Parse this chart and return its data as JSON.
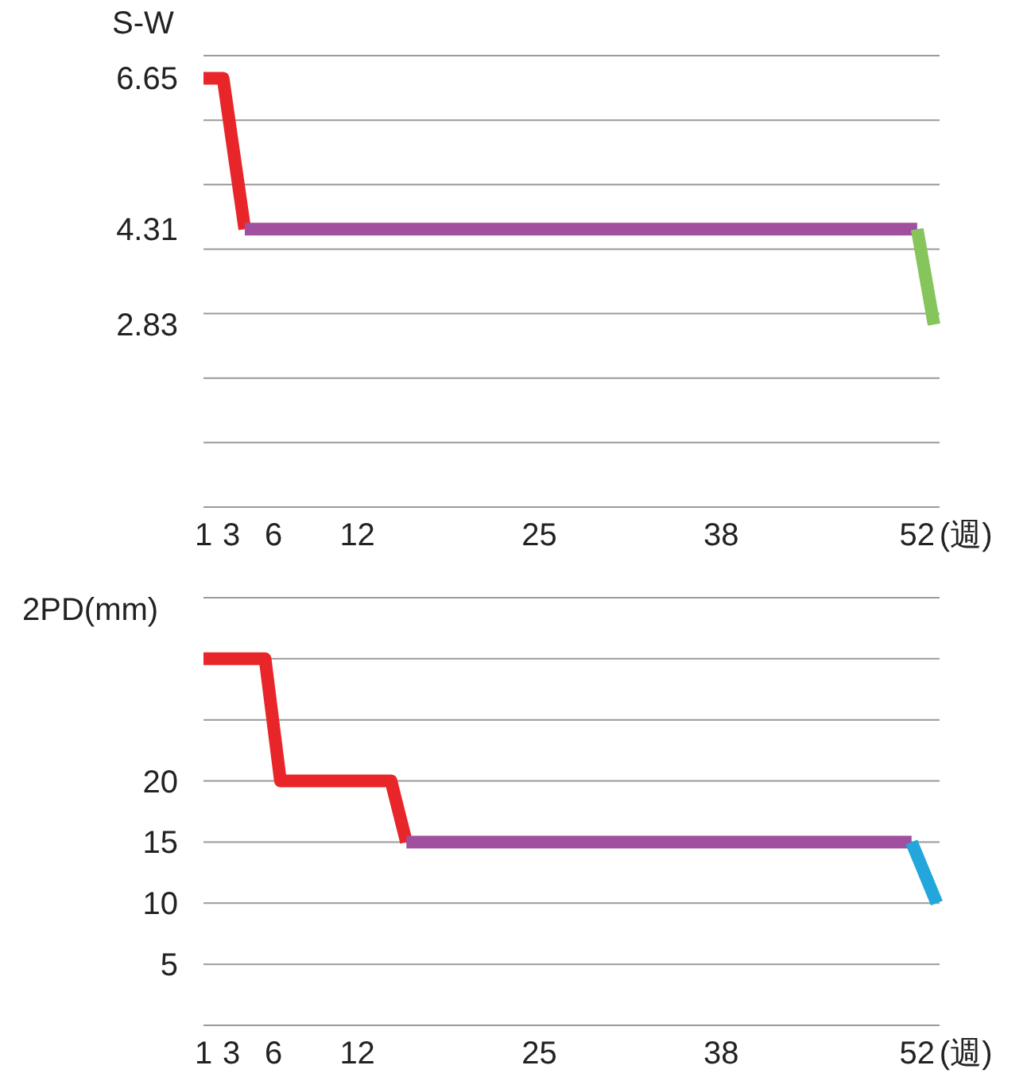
{
  "chart_data": [
    {
      "type": "line",
      "ylabel": "S-W",
      "xlabel": "(週)",
      "xlim": [
        1,
        53.6
      ],
      "xticks": [
        1,
        3,
        6,
        12,
        25,
        38,
        52
      ],
      "ylim": [
        0,
        7
      ],
      "yticks": [
        {
          "value": 0,
          "label": null
        },
        {
          "value": 1,
          "label": null
        },
        {
          "value": 2,
          "label": null
        },
        {
          "value": 3,
          "label": null
        },
        {
          "value": 4,
          "label": null
        },
        {
          "value": 5,
          "label": null
        },
        {
          "value": 6,
          "label": null
        },
        {
          "value": 7,
          "label": null
        },
        6.65,
        4.31,
        2.83
      ],
      "grid": "y",
      "line_style": "solid",
      "marker": "none",
      "series": [
        {
          "color": "#e8262a",
          "x": [
            1,
            2.4,
            3.95
          ],
          "values": [
            6.65,
            6.65,
            4.31
          ]
        },
        {
          "color": "#a0509e",
          "x": [
            3.95,
            52
          ],
          "values": [
            4.31,
            4.31
          ]
        },
        {
          "color": "#86c55b",
          "x": [
            52,
            53.2
          ],
          "values": [
            4.31,
            2.83
          ]
        }
      ]
    },
    {
      "type": "line",
      "ylabel": "2PD(mm)",
      "xlabel": "(週)",
      "xlim": [
        1,
        53.6
      ],
      "xticks": [
        1,
        3,
        6,
        12,
        25,
        38,
        52
      ],
      "ylim": [
        0,
        35
      ],
      "yticks": [
        {
          "value": 0,
          "label": null
        },
        5,
        10,
        15,
        20,
        {
          "value": 25,
          "label": null
        },
        {
          "value": 30,
          "label": null
        },
        {
          "value": 35,
          "label": null
        }
      ],
      "grid": "y",
      "line_style": "solid",
      "marker": "none",
      "series": [
        {
          "color": "#e8262a",
          "x": [
            1,
            5.4,
            6.5,
            14.4,
            15.5
          ],
          "values": [
            30,
            30,
            20,
            20,
            15
          ]
        },
        {
          "color": "#a0509e",
          "x": [
            15.5,
            51.6
          ],
          "values": [
            15,
            15
          ]
        },
        {
          "color": "#23a6dc",
          "x": [
            51.6,
            53.4
          ],
          "values": [
            15,
            10
          ]
        }
      ]
    }
  ]
}
